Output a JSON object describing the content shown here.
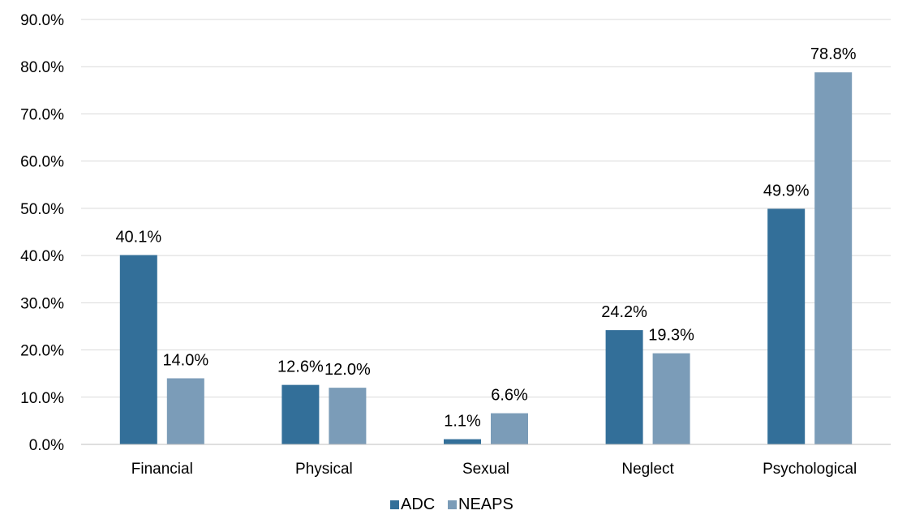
{
  "chart_data": {
    "type": "bar",
    "title": "",
    "xlabel": "",
    "ylabel": "",
    "categories": [
      "Financial",
      "Physical",
      "Sexual",
      "Neglect",
      "Psychological"
    ],
    "series": [
      {
        "name": "ADC",
        "color": "#336f99",
        "values": [
          40.1,
          12.6,
          1.1,
          24.2,
          49.9
        ],
        "labels": [
          "40.1%",
          "12.6%",
          "1.1%",
          "24.2%",
          "49.9%"
        ]
      },
      {
        "name": "NEAPS",
        "color": "#7b9cb8",
        "values": [
          14.0,
          12.0,
          6.6,
          19.3,
          78.8
        ],
        "labels": [
          "14.0%",
          "12.0%",
          "6.6%",
          "19.3%",
          "78.8%"
        ]
      }
    ],
    "ylim": [
      0,
      90
    ],
    "yticks": [
      0,
      10,
      20,
      30,
      40,
      50,
      60,
      70,
      80,
      90
    ],
    "ytick_labels": [
      "0.0%",
      "10.0%",
      "20.0%",
      "30.0%",
      "40.0%",
      "50.0%",
      "60.0%",
      "70.0%",
      "80.0%",
      "90.0%"
    ],
    "grid": true,
    "legend_position": "bottom-center"
  }
}
